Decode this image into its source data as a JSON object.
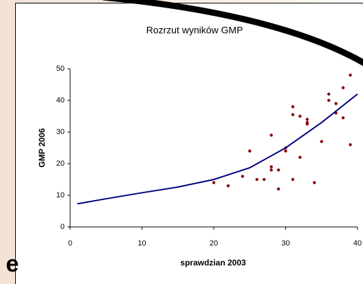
{
  "slide_text": "e",
  "chart_data": {
    "type": "scatter",
    "title": "Rozrzut wyników GMP",
    "xlabel": "sprawdzian 2003",
    "ylabel": "GMP 2006",
    "xlim": [
      0,
      40
    ],
    "ylim": [
      0,
      50
    ],
    "xticks": [
      0,
      10,
      20,
      30,
      40
    ],
    "yticks": [
      0,
      10,
      20,
      30,
      40,
      50
    ],
    "grid": false,
    "series": [
      {
        "mode": "markers",
        "color": "#8b0000",
        "x": [
          20,
          22,
          24,
          25,
          26,
          27,
          28,
          28,
          28,
          29,
          29,
          30,
          30,
          31,
          31,
          31,
          32,
          32,
          33,
          33,
          33,
          34,
          35,
          36,
          36,
          37,
          37,
          38,
          38,
          39,
          39
        ],
        "values": [
          14,
          13,
          16,
          24,
          15,
          15,
          29,
          19,
          18,
          12,
          18,
          24,
          25,
          38,
          35.5,
          15,
          35,
          22,
          34,
          33,
          32.5,
          14,
          27,
          42,
          40,
          39,
          36,
          44,
          34.5,
          48,
          26
        ]
      },
      {
        "mode": "line",
        "color": "#000080",
        "x": [
          1,
          5,
          10,
          15,
          20,
          25,
          30,
          35,
          40
        ],
        "values": [
          7.3,
          8.9,
          10.8,
          12.6,
          15,
          18.7,
          25,
          33,
          42
        ]
      }
    ]
  }
}
